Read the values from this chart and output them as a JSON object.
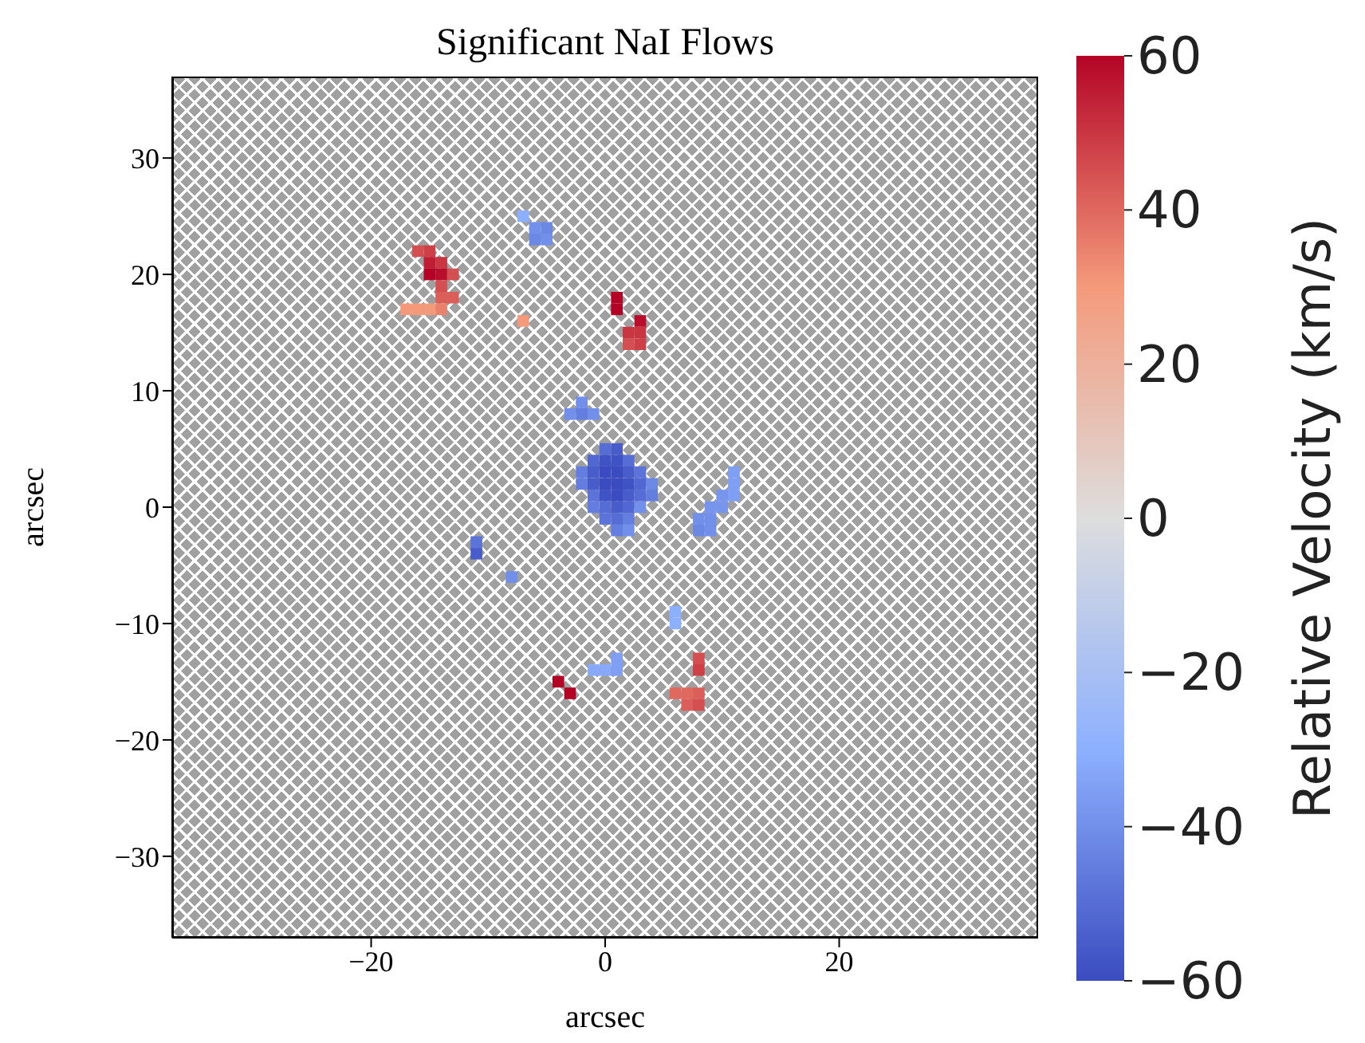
{
  "chart_data": {
    "type": "scatter",
    "title": "Significant NaI Flows",
    "xlabel": "arcsec",
    "ylabel": "arcsec",
    "clabel": "Relative Velocity (km/s)",
    "marker": "square",
    "grid": false,
    "xlim": [
      -37,
      37
    ],
    "ylim": [
      -37,
      37
    ],
    "xticks": [
      -20,
      0,
      20
    ],
    "yticks": [
      -30,
      -20,
      -10,
      0,
      10,
      20,
      30
    ],
    "clim": [
      -60,
      60
    ],
    "cticks": [
      -60,
      -40,
      -20,
      0,
      20,
      40,
      60
    ],
    "x": [
      -16,
      -15,
      -15,
      -14,
      -15,
      -14,
      -13,
      -14,
      -14,
      -13,
      -14,
      -17,
      -16,
      -15,
      -7,
      -6,
      -5,
      -6,
      -5,
      -7,
      1,
      1,
      3,
      2,
      3,
      2,
      3,
      -3,
      -2,
      -1,
      -2,
      0,
      1,
      -1,
      0,
      1,
      2,
      -2,
      -1,
      0,
      1,
      2,
      3,
      -2,
      -1,
      0,
      1,
      2,
      3,
      4,
      -1,
      0,
      1,
      2,
      3,
      4,
      -1,
      0,
      1,
      2,
      3,
      0,
      1,
      2,
      1,
      2,
      11,
      11,
      10,
      11,
      9,
      10,
      9,
      8,
      8,
      9,
      -11,
      -11,
      -8,
      6,
      6,
      1,
      0,
      1,
      -1,
      -4,
      -3,
      8,
      8,
      6,
      7,
      8,
      7,
      8
    ],
    "values": [
      22,
      22,
      21,
      21,
      20,
      20,
      20,
      19,
      18,
      18,
      17,
      17,
      17,
      17,
      25,
      24,
      24,
      23,
      23,
      16,
      18,
      17,
      16,
      15,
      15,
      14,
      14,
      8,
      8,
      8,
      9,
      5,
      5,
      4,
      4,
      4,
      4,
      3,
      3,
      3,
      3,
      3,
      3,
      2,
      2,
      2,
      2,
      2,
      2,
      2,
      1,
      1,
      1,
      1,
      1,
      1,
      0,
      0,
      0,
      0,
      0,
      -1,
      -1,
      -1,
      -2,
      -2,
      3,
      2,
      1,
      1,
      0,
      0,
      -1,
      -1,
      -2,
      -2,
      -3,
      -4,
      -6,
      -9,
      -10,
      -13,
      -14,
      -14,
      -14,
      -15,
      -16,
      -13,
      -14,
      -16,
      -16,
      -16,
      -17,
      -17
    ],
    "cvalues": [
      45,
      48,
      55,
      50,
      60,
      58,
      45,
      45,
      42,
      42,
      35,
      30,
      30,
      30,
      -30,
      -40,
      -42,
      -42,
      -40,
      30,
      60,
      60,
      58,
      50,
      50,
      45,
      48,
      -40,
      -45,
      -40,
      -40,
      -50,
      -55,
      -52,
      -58,
      -58,
      -50,
      -45,
      -55,
      -60,
      -60,
      -55,
      -48,
      -45,
      -55,
      -60,
      -60,
      -58,
      -52,
      -42,
      -48,
      -58,
      -60,
      -55,
      -50,
      -45,
      -45,
      -50,
      -55,
      -52,
      -40,
      -48,
      -50,
      -45,
      -45,
      -40,
      -35,
      -35,
      -38,
      -35,
      -38,
      -38,
      -40,
      -40,
      -42,
      -40,
      -48,
      -55,
      -40,
      -30,
      -30,
      -35,
      -32,
      -35,
      -32,
      60,
      60,
      45,
      48,
      40,
      40,
      42,
      42,
      45
    ]
  }
}
